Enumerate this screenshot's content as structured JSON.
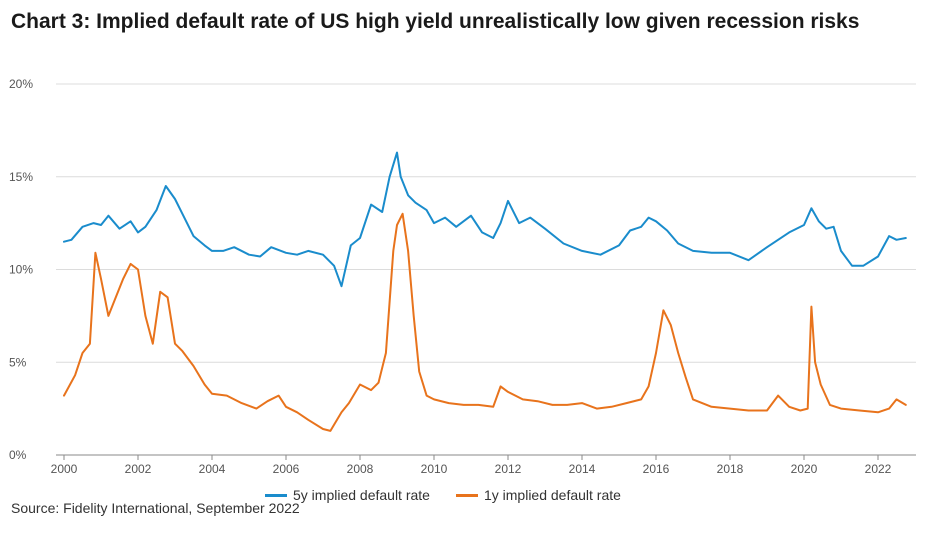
{
  "title": "Chart 3: Implied default rate of US high yield unrealistically low given recession risks",
  "source": "Source: Fidelity International, September 2022",
  "chart_data": {
    "type": "line",
    "title": "Chart 3: Implied default rate of US high yield unrealistically low given recession risks",
    "xlabel": "",
    "ylabel": "",
    "xlim": [
      2000.0,
      2022.75
    ],
    "ylim": [
      0,
      20
    ],
    "yticks": [
      0,
      5,
      10,
      15,
      20
    ],
    "ytick_labels": [
      "0%",
      "5%",
      "10%",
      "15%",
      "20%"
    ],
    "xticks": [
      2000,
      2002,
      2004,
      2006,
      2008,
      2010,
      2012,
      2014,
      2016,
      2018,
      2020,
      2022
    ],
    "xtick_labels": [
      "2000",
      "2002",
      "2004",
      "2006",
      "2008",
      "2010",
      "2012",
      "2014",
      "2016",
      "2018",
      "2020",
      "2022"
    ],
    "grid": "horizontal",
    "legend_position": "bottom",
    "series": [
      {
        "name": "5y implied default rate",
        "color": "#1a8ccc",
        "x": [
          2000.0,
          2000.2,
          2000.5,
          2000.8,
          2001.0,
          2001.2,
          2001.5,
          2001.8,
          2002.0,
          2002.2,
          2002.5,
          2002.75,
          2003.0,
          2003.2,
          2003.5,
          2003.8,
          2004.0,
          2004.3,
          2004.6,
          2005.0,
          2005.3,
          2005.6,
          2006.0,
          2006.3,
          2006.6,
          2007.0,
          2007.3,
          2007.5,
          2007.75,
          2008.0,
          2008.3,
          2008.6,
          2008.8,
          2009.0,
          2009.1,
          2009.3,
          2009.5,
          2009.8,
          2010.0,
          2010.3,
          2010.6,
          2011.0,
          2011.3,
          2011.6,
          2011.8,
          2012.0,
          2012.3,
          2012.6,
          2013.0,
          2013.5,
          2014.0,
          2014.5,
          2015.0,
          2015.3,
          2015.6,
          2015.8,
          2016.0,
          2016.3,
          2016.6,
          2017.0,
          2017.5,
          2018.0,
          2018.5,
          2019.0,
          2019.3,
          2019.6,
          2020.0,
          2020.2,
          2020.4,
          2020.6,
          2020.8,
          2021.0,
          2021.3,
          2021.6,
          2022.0,
          2022.3,
          2022.5,
          2022.75
        ],
        "values": [
          11.5,
          11.6,
          12.3,
          12.5,
          12.4,
          12.9,
          12.2,
          12.6,
          12.0,
          12.3,
          13.2,
          14.5,
          13.8,
          13.0,
          11.8,
          11.3,
          11.0,
          11.0,
          11.2,
          10.8,
          10.7,
          11.2,
          10.9,
          10.8,
          11.0,
          10.8,
          10.2,
          9.1,
          11.3,
          11.7,
          13.5,
          13.1,
          15.0,
          16.3,
          15.0,
          14.0,
          13.6,
          13.2,
          12.5,
          12.8,
          12.3,
          12.9,
          12.0,
          11.7,
          12.5,
          13.7,
          12.5,
          12.8,
          12.2,
          11.4,
          11.0,
          10.8,
          11.3,
          12.1,
          12.3,
          12.8,
          12.6,
          12.1,
          11.4,
          11.0,
          10.9,
          10.9,
          10.5,
          11.2,
          11.6,
          12.0,
          12.4,
          13.3,
          12.6,
          12.2,
          12.3,
          11.0,
          10.2,
          10.2,
          10.7,
          11.8,
          11.6,
          11.7
        ]
      },
      {
        "name": "1y implied default rate",
        "color": "#e8731c",
        "x": [
          2000.0,
          2000.3,
          2000.5,
          2000.7,
          2000.85,
          2001.0,
          2001.2,
          2001.4,
          2001.6,
          2001.8,
          2002.0,
          2002.2,
          2002.4,
          2002.6,
          2002.8,
          2003.0,
          2003.2,
          2003.5,
          2003.8,
          2004.0,
          2004.4,
          2004.8,
          2005.2,
          2005.5,
          2005.8,
          2006.0,
          2006.3,
          2006.6,
          2007.0,
          2007.2,
          2007.5,
          2007.7,
          2008.0,
          2008.3,
          2008.5,
          2008.7,
          2008.9,
          2009.0,
          2009.15,
          2009.3,
          2009.45,
          2009.6,
          2009.8,
          2010.0,
          2010.4,
          2010.8,
          2011.2,
          2011.6,
          2011.8,
          2012.0,
          2012.4,
          2012.8,
          2013.2,
          2013.6,
          2014.0,
          2014.4,
          2014.8,
          2015.2,
          2015.6,
          2015.8,
          2016.0,
          2016.2,
          2016.4,
          2016.6,
          2016.8,
          2017.0,
          2017.5,
          2018.0,
          2018.5,
          2019.0,
          2019.3,
          2019.6,
          2019.9,
          2020.1,
          2020.2,
          2020.3,
          2020.45,
          2020.7,
          2021.0,
          2021.5,
          2022.0,
          2022.3,
          2022.5,
          2022.75
        ],
        "values": [
          3.2,
          4.3,
          5.5,
          6.0,
          10.9,
          9.5,
          7.5,
          8.5,
          9.5,
          10.3,
          10.0,
          7.5,
          6.0,
          8.8,
          8.5,
          6.0,
          5.6,
          4.8,
          3.8,
          3.3,
          3.2,
          2.8,
          2.5,
          2.9,
          3.2,
          2.6,
          2.3,
          1.9,
          1.4,
          1.3,
          2.3,
          2.8,
          3.8,
          3.5,
          3.9,
          5.5,
          11.0,
          12.4,
          13.0,
          11.0,
          7.5,
          4.5,
          3.2,
          3.0,
          2.8,
          2.7,
          2.7,
          2.6,
          3.7,
          3.4,
          3.0,
          2.9,
          2.7,
          2.7,
          2.8,
          2.5,
          2.6,
          2.8,
          3.0,
          3.7,
          5.5,
          7.8,
          7.0,
          5.5,
          4.2,
          3.0,
          2.6,
          2.5,
          2.4,
          2.4,
          3.2,
          2.6,
          2.4,
          2.5,
          8.0,
          5.0,
          3.8,
          2.7,
          2.5,
          2.4,
          2.3,
          2.5,
          3.0,
          2.7
        ]
      }
    ]
  }
}
